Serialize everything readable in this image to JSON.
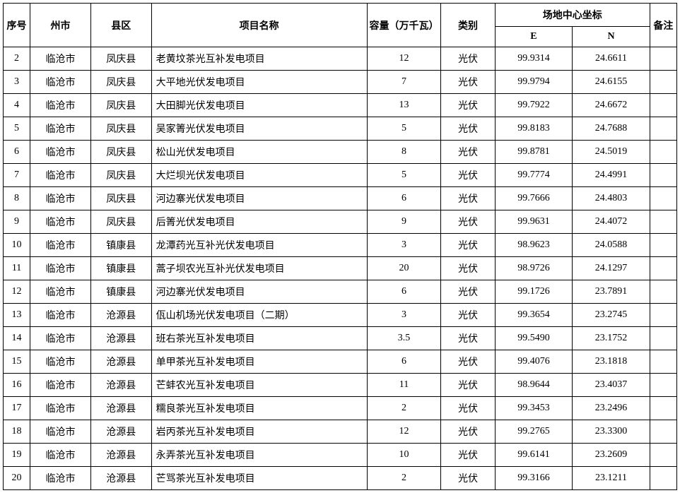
{
  "headers": {
    "seq": "序号",
    "city": "州市",
    "county": "县区",
    "project": "项目名称",
    "capacity": "容量（万千瓦）",
    "category": "类别",
    "coord_group": "场地中心坐标",
    "coord_e": "E",
    "coord_n": "N",
    "note": "备注"
  },
  "rows": [
    {
      "seq": "2",
      "city": "临沧市",
      "county": "凤庆县",
      "name": "老黄坟茶光互补发电项目",
      "cap": "12",
      "cat": "光伏",
      "e": "99.9314",
      "n": "24.6611",
      "note": ""
    },
    {
      "seq": "3",
      "city": "临沧市",
      "county": "凤庆县",
      "name": "大平地光伏发电项目",
      "cap": "7",
      "cat": "光伏",
      "e": "99.9794",
      "n": "24.6155",
      "note": ""
    },
    {
      "seq": "4",
      "city": "临沧市",
      "county": "凤庆县",
      "name": "大田脚光伏发电项目",
      "cap": "13",
      "cat": "光伏",
      "e": "99.7922",
      "n": "24.6672",
      "note": ""
    },
    {
      "seq": "5",
      "city": "临沧市",
      "county": "凤庆县",
      "name": "吴家箐光伏发电项目",
      "cap": "5",
      "cat": "光伏",
      "e": "99.8183",
      "n": "24.7688",
      "note": ""
    },
    {
      "seq": "6",
      "city": "临沧市",
      "county": "凤庆县",
      "name": "松山光伏发电项目",
      "cap": "8",
      "cat": "光伏",
      "e": "99.8781",
      "n": "24.5019",
      "note": ""
    },
    {
      "seq": "7",
      "city": "临沧市",
      "county": "凤庆县",
      "name": "大烂坝光伏发电项目",
      "cap": "5",
      "cat": "光伏",
      "e": "99.7774",
      "n": "24.4991",
      "note": ""
    },
    {
      "seq": "8",
      "city": "临沧市",
      "county": "凤庆县",
      "name": "河边寨光伏发电项目",
      "cap": "6",
      "cat": "光伏",
      "e": "99.7666",
      "n": "24.4803",
      "note": ""
    },
    {
      "seq": "9",
      "city": "临沧市",
      "county": "凤庆县",
      "name": "后箐光伏发电项目",
      "cap": "9",
      "cat": "光伏",
      "e": "99.9631",
      "n": "24.4072",
      "note": ""
    },
    {
      "seq": "10",
      "city": "临沧市",
      "county": "镇康县",
      "name": "龙潭药光互补光伏发电项目",
      "cap": "3",
      "cat": "光伏",
      "e": "98.9623",
      "n": "24.0588",
      "note": ""
    },
    {
      "seq": "11",
      "city": "临沧市",
      "county": "镇康县",
      "name": "蒿子坝农光互补光伏发电项目",
      "cap": "20",
      "cat": "光伏",
      "e": "98.9726",
      "n": "24.1297",
      "note": ""
    },
    {
      "seq": "12",
      "city": "临沧市",
      "county": "镇康县",
      "name": "河边寨光伏发电项目",
      "cap": "6",
      "cat": "光伏",
      "e": "99.1726",
      "n": "23.7891",
      "note": ""
    },
    {
      "seq": "13",
      "city": "临沧市",
      "county": "沧源县",
      "name": "佤山机场光伏发电项目（二期）",
      "cap": "3",
      "cat": "光伏",
      "e": "99.3654",
      "n": "23.2745",
      "note": ""
    },
    {
      "seq": "14",
      "city": "临沧市",
      "county": "沧源县",
      "name": "班右茶光互补发电项目",
      "cap": "3.5",
      "cat": "光伏",
      "e": "99.5490",
      "n": "23.1752",
      "note": ""
    },
    {
      "seq": "15",
      "city": "临沧市",
      "county": "沧源县",
      "name": "单甲茶光互补发电项目",
      "cap": "6",
      "cat": "光伏",
      "e": "99.4076",
      "n": "23.1818",
      "note": ""
    },
    {
      "seq": "16",
      "city": "临沧市",
      "county": "沧源县",
      "name": "芒蚌农光互补发电项目",
      "cap": "11",
      "cat": "光伏",
      "e": "98.9644",
      "n": "23.4037",
      "note": ""
    },
    {
      "seq": "17",
      "city": "临沧市",
      "county": "沧源县",
      "name": "糯良茶光互补发电项目",
      "cap": "2",
      "cat": "光伏",
      "e": "99.3453",
      "n": "23.2496",
      "note": ""
    },
    {
      "seq": "18",
      "city": "临沧市",
      "county": "沧源县",
      "name": "岩丙茶光互补发电项目",
      "cap": "12",
      "cat": "光伏",
      "e": "99.2765",
      "n": "23.3300",
      "note": ""
    },
    {
      "seq": "19",
      "city": "临沧市",
      "county": "沧源县",
      "name": "永弄茶光互补发电项目",
      "cap": "10",
      "cat": "光伏",
      "e": "99.6141",
      "n": "23.2609",
      "note": ""
    },
    {
      "seq": "20",
      "city": "临沧市",
      "county": "沧源县",
      "name": "芒骂茶光互补发电项目",
      "cap": "2",
      "cat": "光伏",
      "e": "99.3166",
      "n": "23.1211",
      "note": ""
    }
  ]
}
